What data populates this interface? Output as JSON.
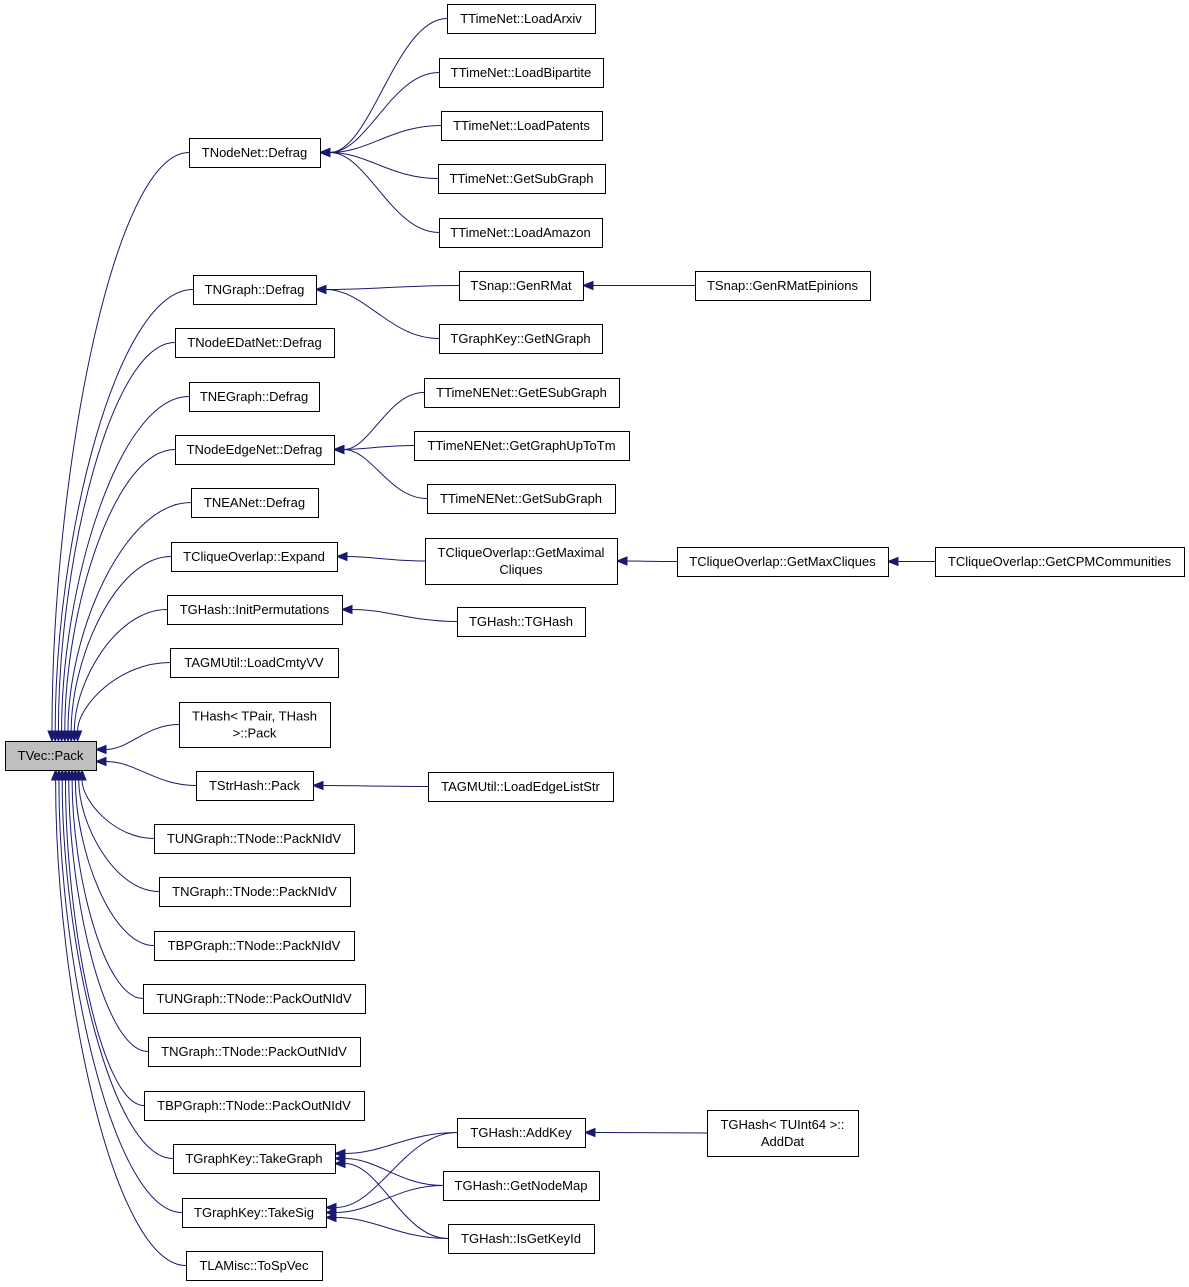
{
  "graph": {
    "type": "caller-graph",
    "edge_color": "#191970",
    "root_fill": "#bfbfbf",
    "nodes": [
      {
        "lines": [
          "TVec::Pack"
        ],
        "root": true
      },
      {
        "lines": [
          "TNodeNet::Defrag"
        ]
      },
      {
        "lines": [
          "TNGraph::Defrag"
        ]
      },
      {
        "lines": [
          "TNodeEDatNet::Defrag"
        ]
      },
      {
        "lines": [
          "TNEGraph::Defrag"
        ]
      },
      {
        "lines": [
          "TNodeEdgeNet::Defrag"
        ]
      },
      {
        "lines": [
          "TNEANet::Defrag"
        ]
      },
      {
        "lines": [
          "TCliqueOverlap::Expand"
        ]
      },
      {
        "lines": [
          "TGHash::InitPermutations"
        ]
      },
      {
        "lines": [
          "TAGMUtil::LoadCmtyVV"
        ]
      },
      {
        "lines": [
          "THash< TPair, THash",
          ">::Pack"
        ]
      },
      {
        "lines": [
          "TStrHash::Pack"
        ]
      },
      {
        "lines": [
          "TUNGraph::TNode::PackNIdV"
        ]
      },
      {
        "lines": [
          "TNGraph::TNode::PackNIdV"
        ]
      },
      {
        "lines": [
          "TBPGraph::TNode::PackNIdV"
        ]
      },
      {
        "lines": [
          "TUNGraph::TNode::PackOutNIdV"
        ]
      },
      {
        "lines": [
          "TNGraph::TNode::PackOutNIdV"
        ]
      },
      {
        "lines": [
          "TBPGraph::TNode::PackOutNIdV"
        ]
      },
      {
        "lines": [
          "TGraphKey::TakeGraph"
        ]
      },
      {
        "lines": [
          "TGraphKey::TakeSig"
        ]
      },
      {
        "lines": [
          "TLAMisc::ToSpVec"
        ]
      },
      {
        "lines": [
          "TTimeNet::LoadArxiv"
        ]
      },
      {
        "lines": [
          "TTimeNet::LoadBipartite"
        ]
      },
      {
        "lines": [
          "TTimeNet::LoadPatents"
        ]
      },
      {
        "lines": [
          "TTimeNet::GetSubGraph"
        ]
      },
      {
        "lines": [
          "TTimeNet::LoadAmazon"
        ]
      },
      {
        "lines": [
          "TSnap::GenRMat"
        ]
      },
      {
        "lines": [
          "TGraphKey::GetNGraph"
        ]
      },
      {
        "lines": [
          "TTimeNENet::GetESubGraph"
        ]
      },
      {
        "lines": [
          "TTimeNENet::GetGraphUpToTm"
        ]
      },
      {
        "lines": [
          "TTimeNENet::GetSubGraph"
        ]
      },
      {
        "lines": [
          "TCliqueOverlap::GetMaximal",
          "Cliques"
        ]
      },
      {
        "lines": [
          "TGHash::TGHash"
        ]
      },
      {
        "lines": [
          "TAGMUtil::LoadEdgeListStr"
        ]
      },
      {
        "lines": [
          "TGHash::AddKey"
        ]
      },
      {
        "lines": [
          "TGHash::GetNodeMap"
        ]
      },
      {
        "lines": [
          "TGHash::IsGetKeyId"
        ]
      },
      {
        "lines": [
          "TSnap::GenRMatEpinions"
        ]
      },
      {
        "lines": [
          "TCliqueOverlap::GetMaxCliques"
        ]
      },
      {
        "lines": [
          "TGHash< TUInt64 >::",
          "AddDat"
        ]
      },
      {
        "lines": [
          "TCliqueOverlap::GetCPMCommunities"
        ]
      }
    ],
    "edges": [
      [
        1,
        0
      ],
      [
        2,
        0
      ],
      [
        3,
        0
      ],
      [
        4,
        0
      ],
      [
        5,
        0
      ],
      [
        6,
        0
      ],
      [
        7,
        0
      ],
      [
        8,
        0
      ],
      [
        9,
        0
      ],
      [
        10,
        0
      ],
      [
        11,
        0
      ],
      [
        12,
        0
      ],
      [
        13,
        0
      ],
      [
        14,
        0
      ],
      [
        15,
        0
      ],
      [
        16,
        0
      ],
      [
        17,
        0
      ],
      [
        18,
        0
      ],
      [
        19,
        0
      ],
      [
        20,
        0
      ],
      [
        21,
        1
      ],
      [
        22,
        1
      ],
      [
        23,
        1
      ],
      [
        24,
        1
      ],
      [
        25,
        1
      ],
      [
        26,
        2
      ],
      [
        27,
        2
      ],
      [
        28,
        5
      ],
      [
        29,
        5
      ],
      [
        30,
        5
      ],
      [
        31,
        7
      ],
      [
        32,
        8
      ],
      [
        33,
        11
      ],
      [
        34,
        18
      ],
      [
        35,
        18
      ],
      [
        36,
        18
      ],
      [
        34,
        19
      ],
      [
        35,
        19
      ],
      [
        36,
        19
      ],
      [
        37,
        26
      ],
      [
        38,
        31
      ],
      [
        39,
        34
      ],
      [
        40,
        38
      ]
    ]
  }
}
